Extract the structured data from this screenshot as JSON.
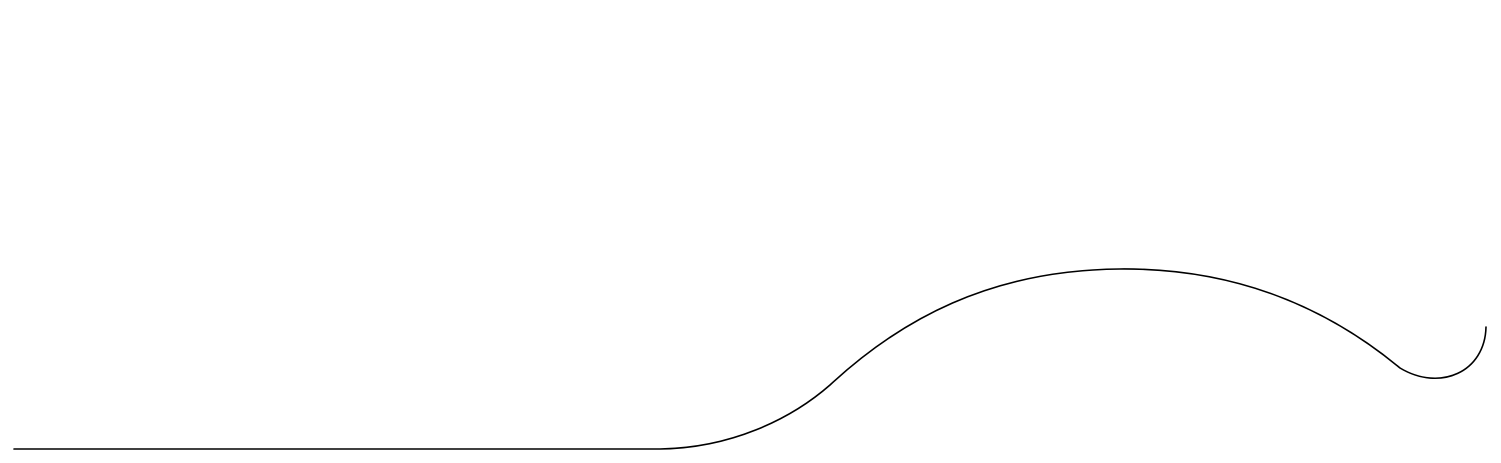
{
  "diagram": {
    "stroke_color": "#000000",
    "background_color": "#ffffff"
  }
}
